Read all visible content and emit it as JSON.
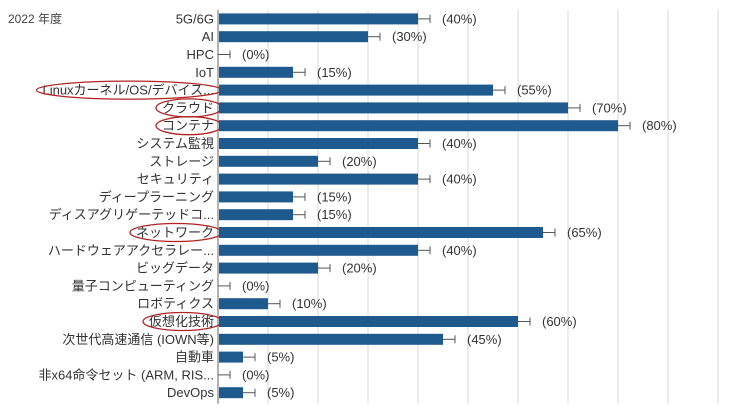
{
  "year_label": "2022 年度",
  "chart_data": {
    "type": "bar",
    "orientation": "horizontal",
    "categories": [
      "5G/6G",
      "AI",
      "HPC",
      "IoT",
      "Linuxカーネル/OS/デバイス...",
      "クラウド",
      "コンテナ",
      "システム監視",
      "ストレージ",
      "セキュリティ",
      "ディープラーニング",
      "ディスアグリゲーテッドコ...",
      "ネットワーク",
      "ハードウェアアクセラレー...",
      "ビッグデータ",
      "量子コンピューティング",
      "ロボティクス",
      "仮想化技術",
      "次世代高速通信 (IOWN等)",
      "自動車",
      "非x64命令セット (ARM, RIS...",
      "DevOps"
    ],
    "values": [
      40,
      30,
      0,
      15,
      55,
      70,
      80,
      40,
      20,
      40,
      15,
      15,
      65,
      40,
      20,
      0,
      10,
      60,
      45,
      5,
      0,
      5
    ],
    "value_labels": [
      "(40%)",
      "(30%)",
      "(0%)",
      "(15%)",
      "(55%)",
      "(70%)",
      "(80%)",
      "(40%)",
      "(20%)",
      "(40%)",
      "(15%)",
      "(15%)",
      "(65%)",
      "(40%)",
      "(20%)",
      "(0%)",
      "(10%)",
      "(60%)",
      "(45%)",
      "(5%)",
      "(0%)",
      "(5%)"
    ],
    "xlim": [
      0,
      100
    ],
    "grid": true,
    "error_bars": true,
    "highlighted": [
      "Linuxカーネル/OS/デバイス...",
      "クラウド",
      "コンテナ",
      "ネットワーク",
      "仮想化技術"
    ],
    "colors": {
      "bar": "#1f5a8e",
      "grid": "#d9d9d9",
      "highlight": "#b22222",
      "axis": "#666666"
    }
  }
}
